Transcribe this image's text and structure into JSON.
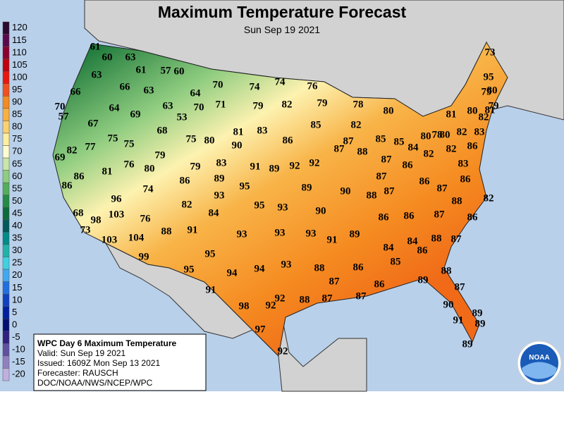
{
  "header": {
    "title": "Maximum Temperature Forecast",
    "subtitle": "Sun Sep 19 2021"
  },
  "scale": {
    "values": [
      120,
      115,
      110,
      105,
      100,
      95,
      90,
      85,
      80,
      75,
      70,
      65,
      60,
      55,
      50,
      45,
      40,
      35,
      30,
      25,
      20,
      15,
      10,
      5,
      0,
      -5,
      -10,
      -15,
      -20
    ],
    "colors": [
      "#2a0a30",
      "#5a0a4a",
      "#8b0030",
      "#c00010",
      "#e81810",
      "#f05020",
      "#f58a20",
      "#f8b040",
      "#fbd070",
      "#fdeea0",
      "#fffcd0",
      "#c8e6a8",
      "#8fcd80",
      "#52ae5a",
      "#238b45",
      "#0b6b3b",
      "#005a5a",
      "#008b8b",
      "#20b2aa",
      "#40d0e0",
      "#40a8f0",
      "#2070e0",
      "#1040c0",
      "#0020a0",
      "#001070",
      "#302080",
      "#6050a0",
      "#9080c0",
      "#c0b0e0"
    ]
  },
  "info": {
    "title": "WPC Day 6 Maximum Temperature",
    "valid": "Valid: Sun Sep 19 2021",
    "issued": "Issued: 1609Z Mon Sep 13 2021",
    "forecaster": "Forecaster: RAUSCH",
    "agency": "DOC/NOAA/NWS/NCEP/WPC"
  },
  "logo": "NOAA",
  "forecast_values": [
    61,
    60,
    63,
    63,
    61,
    57,
    60,
    66,
    66,
    63,
    70,
    74,
    74,
    76,
    64,
    70,
    64,
    69,
    63,
    70,
    71,
    79,
    82,
    79,
    78,
    57,
    53,
    80,
    73,
    95,
    79,
    80,
    79,
    81,
    80,
    81,
    82,
    83,
    67,
    68,
    81,
    83,
    85,
    82,
    86,
    87,
    85,
    85,
    84,
    80,
    78,
    80,
    82,
    75,
    75,
    75,
    80,
    82,
    77,
    79,
    90,
    87,
    88,
    87,
    82,
    82,
    86,
    69,
    83,
    76,
    80,
    81,
    79,
    91,
    89,
    92,
    92,
    87,
    86,
    83,
    86,
    89,
    86,
    86,
    86,
    86,
    95,
    89,
    90,
    88,
    87,
    87,
    82,
    74,
    93,
    96,
    82,
    95,
    93,
    90,
    88,
    84,
    68,
    103,
    98,
    76,
    86,
    86,
    87,
    86,
    73,
    91,
    88,
    93,
    93,
    93,
    89,
    91,
    88,
    87,
    103,
    104,
    84,
    84,
    86,
    99,
    95,
    94,
    93,
    88,
    86,
    85,
    95,
    94,
    87,
    86,
    89,
    88,
    87,
    91,
    92,
    92,
    88,
    87,
    87,
    98,
    90,
    89,
    91,
    89,
    97,
    92,
    89
  ]
}
